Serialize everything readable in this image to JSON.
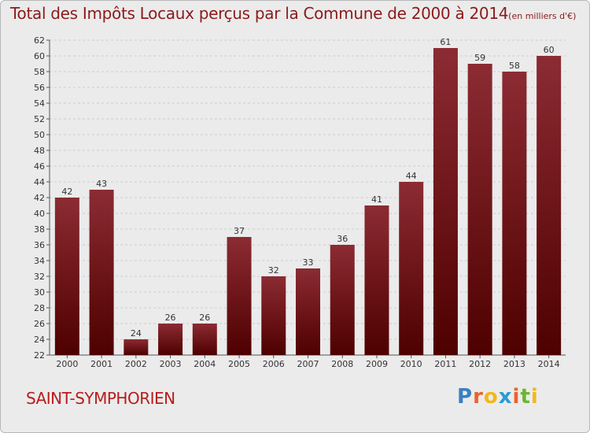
{
  "chart_data": {
    "type": "bar",
    "title": "Total des Impôts Locaux perçus par la Commune de 2000 à 2014",
    "subtitle": "(en milliers d'€)",
    "xlabel": "",
    "ylabel": "",
    "categories": [
      "2000",
      "2001",
      "2002",
      "2003",
      "2004",
      "2005",
      "2006",
      "2007",
      "2008",
      "2009",
      "2010",
      "2011",
      "2012",
      "2013",
      "2014"
    ],
    "values": [
      42,
      43,
      24,
      26,
      26,
      37,
      32,
      33,
      36,
      41,
      44,
      61,
      59,
      58,
      60
    ],
    "ylim": [
      22,
      62
    ],
    "yticks": [
      22,
      24,
      26,
      28,
      30,
      32,
      34,
      36,
      38,
      40,
      42,
      44,
      46,
      48,
      50,
      52,
      54,
      56,
      58,
      60,
      62
    ],
    "grid": true,
    "colors": {
      "bar_top": "#8c2b33",
      "bar_bottom": "#4e0000",
      "grid": "#cccccc",
      "title": "#8b1a1a"
    }
  },
  "footer": {
    "commune": "SAINT-SYMPHORIEN",
    "logo_letters": [
      "P",
      "r",
      "o",
      "x",
      "i",
      "t",
      "i"
    ],
    "logo_colors": [
      "#3a7fc1",
      "#e8632a",
      "#f2b81a",
      "#2a9bd6",
      "#e8632a",
      "#6bb533",
      "#f2b81a"
    ]
  }
}
